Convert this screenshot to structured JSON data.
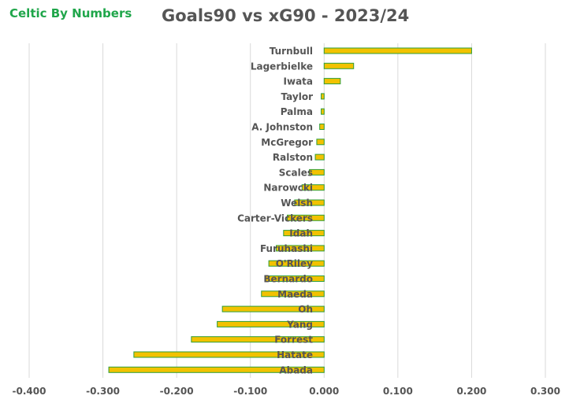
{
  "brand": "Celtic By Numbers",
  "title": "Goals90 vs xG90 - 2023/24",
  "colors": {
    "bar_fill": "#f2c200",
    "bar_stroke": "#2e9e3a",
    "grid": "#d9d9d9",
    "brand": "#1fa64a",
    "text": "#555555"
  },
  "chart_data": {
    "type": "bar",
    "orientation": "horizontal",
    "title": "Goals90 vs xG90 - 2023/24",
    "xlim": [
      -0.4,
      0.3
    ],
    "xticks": [
      "-0.400",
      "-0.300",
      "-0.200",
      "-0.100",
      "0.000",
      "0.100",
      "0.200",
      "0.300"
    ],
    "grid": "vertical",
    "categories": [
      "Turnbull",
      "Lagerbielke",
      "Iwata",
      "Taylor",
      "Palma",
      "A. Johnston",
      "McGregor",
      "Ralston",
      "Scales",
      "Narowcki",
      "Welsh",
      "Carter-Vickers",
      "Idah",
      "Furuhashi",
      "O'Riley",
      "Bernardo",
      "Maeda",
      "Oh",
      "Yang",
      "Forrest",
      "Hatate",
      "Abada"
    ],
    "values": [
      0.2,
      0.04,
      0.022,
      -0.004,
      -0.004,
      -0.006,
      -0.01,
      -0.012,
      -0.02,
      -0.03,
      -0.04,
      -0.05,
      -0.055,
      -0.065,
      -0.075,
      -0.08,
      -0.085,
      -0.138,
      -0.145,
      -0.18,
      -0.258,
      -0.292
    ]
  }
}
